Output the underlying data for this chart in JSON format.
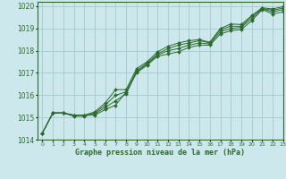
{
  "title": "Graphe pression niveau de la mer (hPa)",
  "bg_color": "#cce8ec",
  "grid_color": "#aacdd4",
  "line_color": "#2d6a2d",
  "marker_color": "#2d6a2d",
  "xlim": [
    -0.5,
    23
  ],
  "ylim": [
    1014,
    1020.2
  ],
  "xticks": [
    0,
    1,
    2,
    3,
    4,
    5,
    6,
    7,
    8,
    9,
    10,
    11,
    12,
    13,
    14,
    15,
    16,
    17,
    18,
    19,
    20,
    21,
    22,
    23
  ],
  "yticks": [
    1014,
    1015,
    1016,
    1017,
    1018,
    1019,
    1020
  ],
  "lines": [
    [
      1014.3,
      1015.2,
      1015.2,
      1015.1,
      1015.1,
      1015.1,
      1015.35,
      1015.55,
      1016.15,
      1017.0,
      1017.35,
      1017.75,
      1017.85,
      1017.95,
      1018.15,
      1018.25,
      1018.25,
      1018.75,
      1018.9,
      1018.95,
      1019.35,
      1019.85,
      1019.65,
      1019.75
    ],
    [
      1014.3,
      1015.2,
      1015.2,
      1015.1,
      1015.1,
      1015.15,
      1015.45,
      1015.75,
      1016.05,
      1017.05,
      1017.4,
      1017.8,
      1018.0,
      1018.1,
      1018.25,
      1018.35,
      1018.3,
      1018.85,
      1019.0,
      1019.05,
      1019.45,
      1019.88,
      1019.75,
      1019.85
    ],
    [
      1014.3,
      1015.2,
      1015.2,
      1015.05,
      1015.05,
      1015.2,
      1015.55,
      1016.0,
      1016.15,
      1017.1,
      1017.45,
      1017.85,
      1018.1,
      1018.25,
      1018.35,
      1018.45,
      1018.35,
      1018.95,
      1019.1,
      1019.1,
      1019.55,
      1019.9,
      1019.82,
      1019.92
    ],
    [
      1014.3,
      1015.2,
      1015.2,
      1015.1,
      1015.1,
      1015.25,
      1015.65,
      1016.25,
      1016.25,
      1017.2,
      1017.5,
      1017.95,
      1018.2,
      1018.35,
      1018.45,
      1018.5,
      1018.38,
      1019.0,
      1019.2,
      1019.18,
      1019.58,
      1019.93,
      1019.88,
      1019.98
    ]
  ]
}
